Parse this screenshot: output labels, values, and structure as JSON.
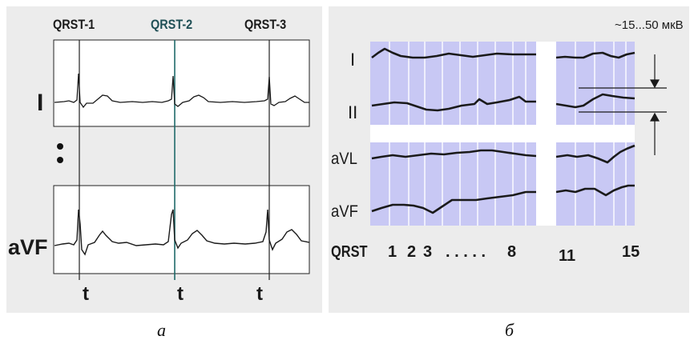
{
  "panel_a": {
    "qrst_labels": [
      "QRST-1",
      "QRST-2",
      "QRST-3"
    ],
    "lead_top": "I",
    "lead_bottom": "aVF",
    "time_marks": [
      "t",
      "t",
      "t"
    ],
    "caption": "а"
  },
  "panel_b": {
    "range_label": "~15...50 мкВ",
    "leads": [
      "I",
      "II",
      "aVL",
      "aVF"
    ],
    "x_axis": {
      "title": "QRST",
      "ticks": [
        "1",
        "2",
        "3",
        ". . . . .",
        "8",
        "11",
        "15"
      ]
    },
    "caption": "б"
  },
  "colors": {
    "background": "#ffffff",
    "panel": "#ececec",
    "trace_box": "#ffffff",
    "marker_line": "#1f6b6b",
    "plot_fill": "#c8c8f4",
    "trace": "#1a1a1a"
  }
}
